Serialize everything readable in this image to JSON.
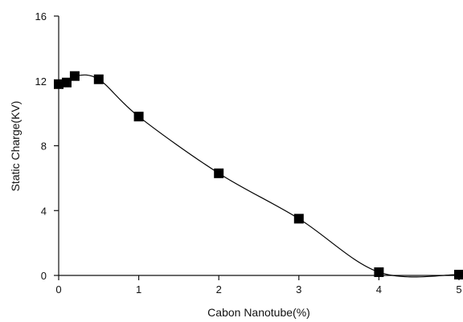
{
  "chart_data": {
    "type": "scatter",
    "title": "",
    "xlabel": "Cabon Nanotube(%)",
    "ylabel": "Static Charge(KV)",
    "xlim": [
      0,
      5
    ],
    "ylim": [
      0,
      16
    ],
    "x_ticks": [
      "0",
      "1",
      "2",
      "3",
      "4",
      "5"
    ],
    "y_ticks": [
      "0",
      "4",
      "8",
      "12",
      "16"
    ],
    "grid": false,
    "legend": "none",
    "marker": "filled-square",
    "line": "smoothed",
    "color": "#000000",
    "series": [
      {
        "x": [
          0.0,
          0.1,
          0.2,
          0.5,
          1.0,
          2.0,
          3.0,
          4.0,
          5.0
        ],
        "y": [
          11.8,
          11.9,
          12.3,
          12.1,
          9.8,
          6.3,
          3.5,
          0.2,
          0.05
        ]
      }
    ]
  }
}
